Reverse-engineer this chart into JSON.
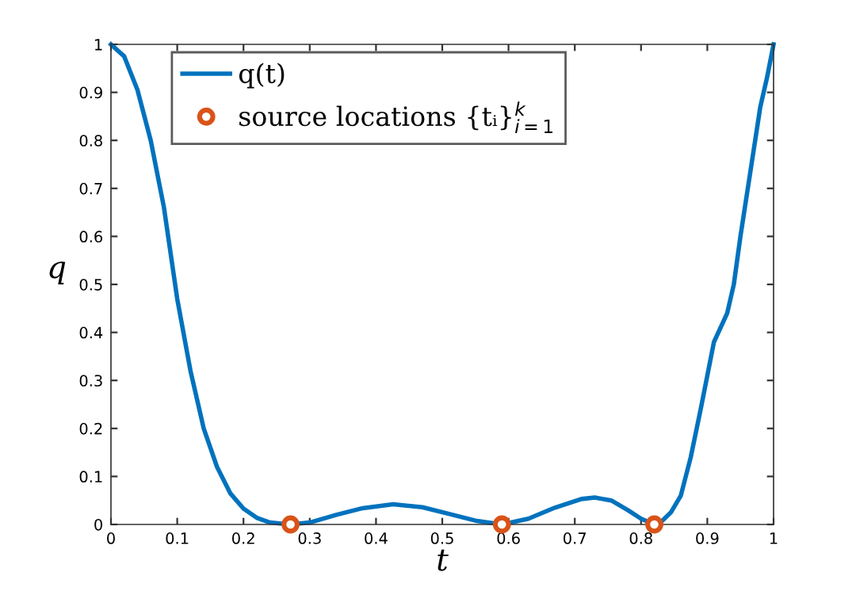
{
  "chart_data": {
    "type": "line",
    "xlabel": "t",
    "ylabel": "q",
    "xlim": [
      0,
      1
    ],
    "ylim": [
      0,
      1
    ],
    "xticks": [
      0,
      0.1,
      0.2,
      0.3,
      0.4,
      0.5,
      0.6,
      0.7,
      0.8,
      0.9,
      1
    ],
    "yticks": [
      0,
      0.1,
      0.2,
      0.3,
      0.4,
      0.5,
      0.6,
      0.7,
      0.8,
      0.9,
      1
    ],
    "grid": false,
    "legend": "top left",
    "series": [
      {
        "name": "q(t)",
        "color": "#0072bd",
        "marker": "none",
        "x": [
          0,
          0.02,
          0.04,
          0.06,
          0.08,
          0.1,
          0.12,
          0.14,
          0.16,
          0.18,
          0.2,
          0.22,
          0.24,
          0.27,
          0.3,
          0.34,
          0.38,
          0.426,
          0.47,
          0.51,
          0.55,
          0.59,
          0.63,
          0.67,
          0.71,
          0.73,
          0.755,
          0.78,
          0.8,
          0.82,
          0.83,
          0.845,
          0.86,
          0.875,
          0.89,
          0.91,
          0.93,
          0.94,
          0.95,
          0.96,
          0.97,
          0.98,
          0.99,
          1
        ],
        "values": [
          1,
          0.975,
          0.905,
          0.8,
          0.66,
          0.47,
          0.32,
          0.2,
          0.12,
          0.065,
          0.033,
          0.014,
          0.004,
          0,
          0.004,
          0.02,
          0.034,
          0.042,
          0.036,
          0.022,
          0.008,
          0,
          0.012,
          0.035,
          0.053,
          0.056,
          0.05,
          0.03,
          0.012,
          0,
          0.005,
          0.025,
          0.06,
          0.14,
          0.24,
          0.38,
          0.44,
          0.5,
          0.6,
          0.69,
          0.78,
          0.87,
          0.93,
          1
        ]
      },
      {
        "name": "source locations {tᵢ}$^{k}$$_{i=1}$",
        "type": "scatter",
        "color": "#d95319",
        "marker": "circle",
        "x": [
          0.271,
          0.59,
          0.82
        ],
        "values": [
          0,
          0,
          0
        ]
      }
    ]
  }
}
